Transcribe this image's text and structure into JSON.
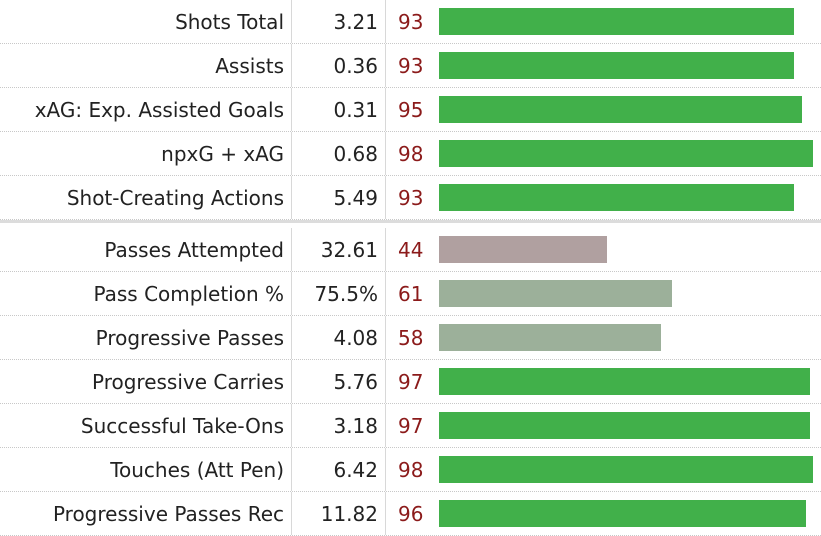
{
  "sections": [
    {
      "rows": [
        {
          "label": "Shots Total",
          "value": "3.21",
          "percentile": 93,
          "color": "#41b04a"
        },
        {
          "label": "Assists",
          "value": "0.36",
          "percentile": 93,
          "color": "#41b04a"
        },
        {
          "label": "xAG: Exp. Assisted Goals",
          "value": "0.31",
          "percentile": 95,
          "color": "#41b04a"
        },
        {
          "label": "npxG + xAG",
          "value": "0.68",
          "percentile": 98,
          "color": "#41b04a"
        },
        {
          "label": "Shot-Creating Actions",
          "value": "5.49",
          "percentile": 93,
          "color": "#41b04a"
        }
      ]
    },
    {
      "rows": [
        {
          "label": "Passes Attempted",
          "value": "32.61",
          "percentile": 44,
          "color": "#b0a0a0"
        },
        {
          "label": "Pass Completion %",
          "value": "75.5%",
          "percentile": 61,
          "color": "#9cb09a"
        },
        {
          "label": "Progressive Passes",
          "value": "4.08",
          "percentile": 58,
          "color": "#9cb09a"
        },
        {
          "label": "Progressive Carries",
          "value": "5.76",
          "percentile": 97,
          "color": "#41b04a"
        },
        {
          "label": "Successful Take-Ons",
          "value": "3.18",
          "percentile": 97,
          "color": "#41b04a"
        },
        {
          "label": "Touches (Att Pen)",
          "value": "6.42",
          "percentile": 98,
          "color": "#41b04a"
        },
        {
          "label": "Progressive Passes Rec",
          "value": "11.82",
          "percentile": 96,
          "color": "#41b04a"
        }
      ]
    }
  ]
}
